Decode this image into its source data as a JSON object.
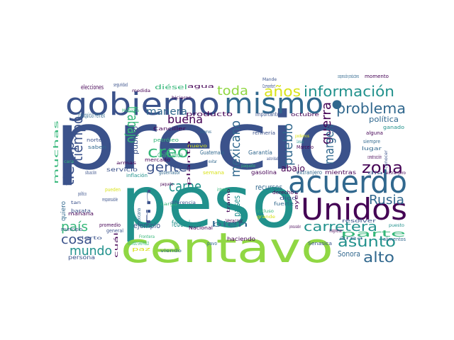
{
  "palette": {
    "purple": "#440154",
    "indigo": "#3b528b",
    "blue": "#31688e",
    "teal": "#21918c",
    "green": "#35b779",
    "lime": "#90d743",
    "yellow": "#d8e219"
  },
  "words": [
    "precio",
    "peso",
    "centavo",
    "gobierno",
    "mismo",
    "acuerdo",
    "Unidos",
    "información",
    "años",
    "toda",
    "problema",
    "zona",
    "Rusia",
    "carretera",
    "asunto",
    "alto",
    "creo",
    "buena",
    "gente",
    "manera",
    "carne",
    "trabajo",
    "tiempo",
    "país",
    "cosa",
    "mundo",
    "litro",
    "pueblo",
    "guerra",
    "margen",
    "mexicano",
    "abajo",
    "política",
    "peso centavos",
    "parte",
    "Sonora",
    "recursos",
    "bien",
    "federal",
    "ejemplo",
    "franquicia Pemex",
    "producto",
    "público",
    "Chihuahua",
    "diésel",
    "elecciones",
    "Canciller",
    "petróleo",
    "Guatemala",
    "mercado",
    "gobernador",
    "servicio",
    "inflación",
    "refinería",
    "Garantía",
    "gasolina",
    "extranjero",
    "mientras",
    "importante",
    "octubre",
    "ganado",
    "alguna",
    "siempre",
    "lugar",
    "construcción",
    "resolver",
    "alimentos",
    "haciendo",
    "Senasica",
    "persona",
    "municipio",
    "mañana",
    "barata",
    "saben",
    "norte",
    "seguridad",
    "agua",
    "Comonfort",
    "momento",
    "cooperación productores",
    "dinero",
    "tipo",
    "VIDEO",
    "muchas",
    "situación",
    "pueden",
    "mexicana",
    "cuál",
    "paz",
    "viendo",
    "intereses",
    "pavo",
    "Veracruz",
    "Nacional",
    "imaginense",
    "RICARDO SHEFFIELD",
    "semana",
    "diferencia",
    "planta",
    "cargo",
    "tramo",
    "paquete",
    "países",
    "derecho",
    "digo",
    "fuerte",
    "procurador",
    "ayer",
    "área",
    "precio",
    "cara",
    "buche",
    "tan",
    "quiero",
    "político",
    "general",
    "promedio",
    "Macsenda",
    "armas",
    "hicieron",
    "Mande",
    "medida",
    "responsable",
    "Frontera",
    "gas",
    "apoyo",
    "fin",
    "nuevo",
    "evitar",
    "Marcelo",
    "Campaña",
    "podemos",
    "agosto",
    "incluso",
    "grande",
    "extranjero",
    "día",
    "conocer",
    "puesto",
    "libre",
    "menos",
    "rápido",
    "estamos",
    "autoridades",
    "muy",
    "caso",
    "cierto",
    "Monterrey",
    "obra",
    "pagar",
    "sin",
    "total",
    "compra",
    "mundial"
  ]
}
